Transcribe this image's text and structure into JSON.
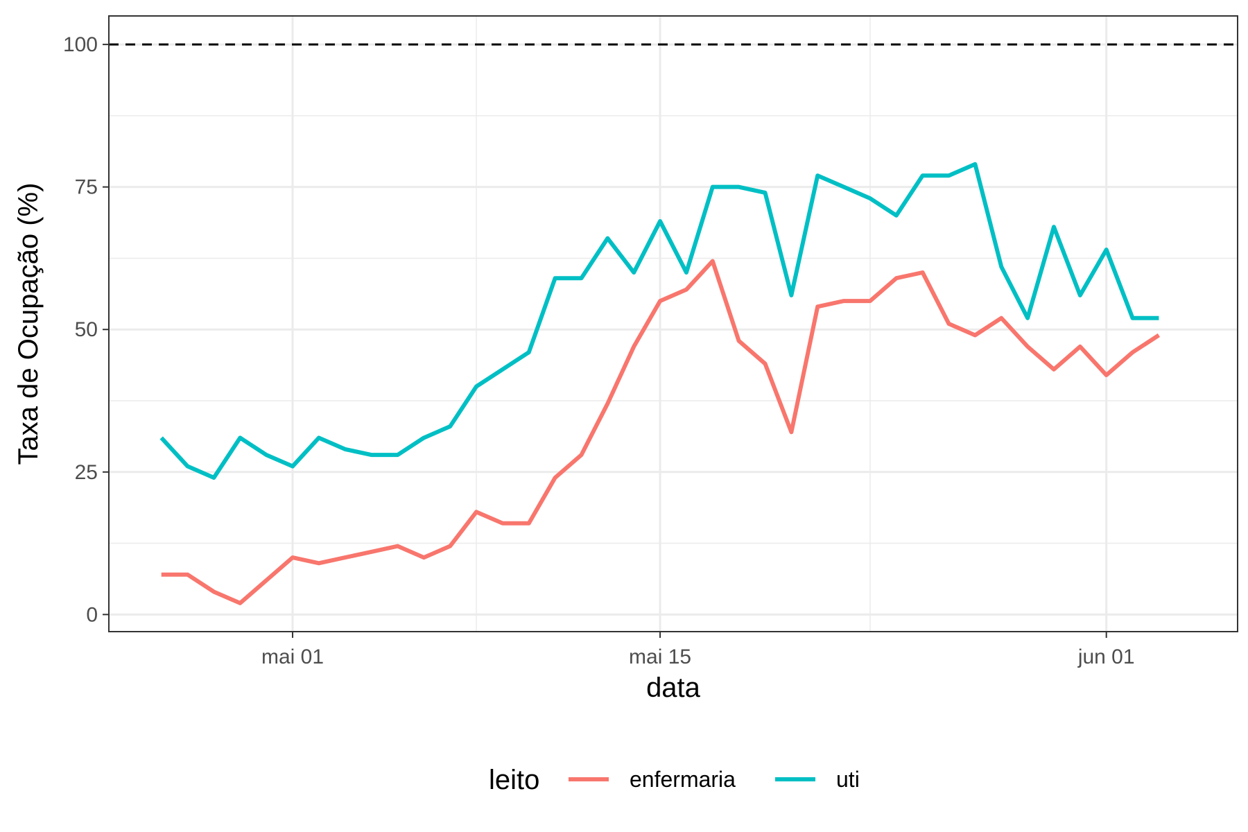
{
  "chart_data": {
    "type": "line",
    "xlabel": "data",
    "ylabel": "Taxa de Ocupação (%)",
    "x_type": "date",
    "x_ticks": [
      {
        "date": "2020-05-01",
        "label": "mai 01"
      },
      {
        "date": "2020-05-15",
        "label": "mai 15"
      },
      {
        "date": "2020-06-01",
        "label": "jun 01"
      }
    ],
    "x_minor_gridlines": [
      "2020-05-08",
      "2020-05-23"
    ],
    "xlim": [
      "2020-04-24",
      "2020-06-06"
    ],
    "y_ticks": [
      0,
      25,
      50,
      75,
      100
    ],
    "ylim": [
      -3,
      105
    ],
    "grid": true,
    "reference_line": {
      "y": 100,
      "style": "dashed",
      "color": "#000000"
    },
    "legend": {
      "title": "leito",
      "position": "bottom"
    },
    "x": [
      "2020-04-26",
      "2020-04-27",
      "2020-04-28",
      "2020-04-29",
      "2020-04-30",
      "2020-05-01",
      "2020-05-02",
      "2020-05-03",
      "2020-05-04",
      "2020-05-05",
      "2020-05-06",
      "2020-05-07",
      "2020-05-08",
      "2020-05-09",
      "2020-05-10",
      "2020-05-11",
      "2020-05-12",
      "2020-05-13",
      "2020-05-14",
      "2020-05-15",
      "2020-05-16",
      "2020-05-17",
      "2020-05-18",
      "2020-05-19",
      "2020-05-20",
      "2020-05-21",
      "2020-05-22",
      "2020-05-23",
      "2020-05-24",
      "2020-05-25",
      "2020-05-26",
      "2020-05-27",
      "2020-05-28",
      "2020-05-29",
      "2020-05-30",
      "2020-05-31",
      "2020-06-01",
      "2020-06-02",
      "2020-06-03",
      "2020-06-04",
      "2020-06-05"
    ],
    "series": [
      {
        "name": "enfermaria",
        "color": "#F8766D",
        "values": [
          7,
          7,
          4,
          2,
          6,
          10,
          9,
          10,
          11,
          12,
          10,
          12,
          18,
          16,
          16,
          24,
          28,
          37,
          47,
          55,
          57,
          62,
          48,
          44,
          32,
          54,
          55,
          55,
          59,
          60,
          51,
          49,
          52,
          47,
          43,
          47,
          42,
          46,
          49,
          null,
          null
        ]
      },
      {
        "name": "uti",
        "color": "#00BFC4",
        "values": [
          31,
          26,
          24,
          31,
          28,
          26,
          31,
          29,
          28,
          28,
          31,
          33,
          40,
          43,
          46,
          59,
          59,
          66,
          60,
          69,
          60,
          75,
          75,
          74,
          56,
          77,
          75,
          73,
          70,
          77,
          77,
          79,
          61,
          52,
          68,
          56,
          64,
          52,
          52,
          null,
          null
        ]
      }
    ]
  }
}
